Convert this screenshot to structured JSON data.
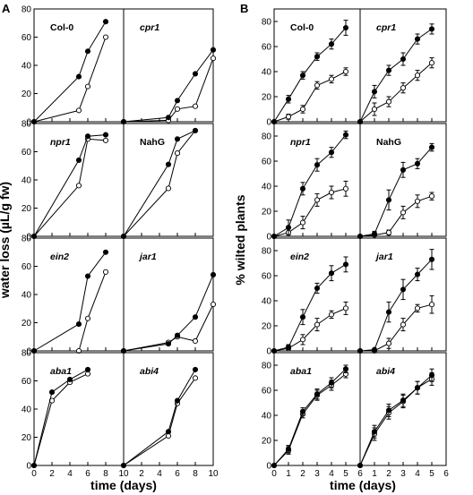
{
  "figure": {
    "panel_letters": [
      "A",
      "B"
    ],
    "panel_A": {
      "ylabel": "water loss (µL/g fw)",
      "xlabel": "time (days)",
      "x_ticks": [
        0,
        2,
        4,
        6,
        8,
        10
      ],
      "y_ticks": [
        0,
        20,
        40,
        60,
        80
      ],
      "xlim": [
        0,
        10
      ],
      "ylim": [
        0,
        80
      ]
    },
    "panel_B": {
      "ylabel": "% wilted plants",
      "xlabel": "time (days)",
      "x_ticks": [
        0,
        1,
        2,
        3,
        4,
        5,
        6
      ],
      "y_ticks": [
        0,
        20,
        40,
        60,
        80
      ],
      "xlim": [
        0,
        6
      ],
      "ylim": [
        0,
        90
      ]
    }
  },
  "chart_data": [
    {
      "type": "line",
      "panel": "A",
      "genotype": "Col-0",
      "italic": false,
      "series": [
        {
          "marker": "filled",
          "x": [
            0,
            5,
            6,
            8
          ],
          "y": [
            0,
            32,
            50,
            71
          ]
        },
        {
          "marker": "open",
          "x": [
            0,
            5,
            6,
            8
          ],
          "y": [
            0,
            8,
            25,
            60
          ]
        }
      ]
    },
    {
      "type": "line",
      "panel": "A",
      "genotype": "cpr1",
      "italic": true,
      "series": [
        {
          "marker": "filled",
          "x": [
            0,
            5,
            6,
            8,
            10
          ],
          "y": [
            0,
            3,
            15,
            34,
            51
          ]
        },
        {
          "marker": "open",
          "x": [
            0,
            5,
            6,
            8,
            10
          ],
          "y": [
            0,
            1,
            9,
            11,
            45
          ]
        }
      ]
    },
    {
      "type": "line",
      "panel": "A",
      "genotype": "npr1",
      "italic": true,
      "series": [
        {
          "marker": "filled",
          "x": [
            0,
            5,
            6,
            8
          ],
          "y": [
            0,
            54,
            71,
            72
          ]
        },
        {
          "marker": "open",
          "x": [
            0,
            5,
            6,
            8
          ],
          "y": [
            0,
            36,
            69,
            68
          ]
        }
      ]
    },
    {
      "type": "line",
      "panel": "A",
      "genotype": "NahG",
      "italic": false,
      "series": [
        {
          "marker": "filled",
          "x": [
            0,
            5,
            6,
            8
          ],
          "y": [
            0,
            51,
            69,
            75
          ]
        },
        {
          "marker": "open",
          "x": [
            0,
            5,
            6,
            8
          ],
          "y": [
            0,
            34,
            59,
            75
          ]
        }
      ]
    },
    {
      "type": "line",
      "panel": "A",
      "genotype": "ein2",
      "italic": true,
      "series": [
        {
          "marker": "filled",
          "x": [
            0,
            5,
            6,
            8
          ],
          "y": [
            0,
            19,
            53,
            70
          ]
        },
        {
          "marker": "open",
          "x": [
            0,
            5,
            6,
            8
          ],
          "y": [
            0,
            0,
            23,
            56
          ]
        }
      ]
    },
    {
      "type": "line",
      "panel": "A",
      "genotype": "jar1",
      "italic": true,
      "series": [
        {
          "marker": "filled",
          "x": [
            0,
            5,
            6,
            8,
            10
          ],
          "y": [
            0,
            5,
            11,
            24,
            54
          ]
        },
        {
          "marker": "open",
          "x": [
            0,
            5,
            6,
            8,
            10
          ],
          "y": [
            0,
            6,
            10,
            7,
            33
          ]
        }
      ]
    },
    {
      "type": "line",
      "panel": "A",
      "genotype": "aba1",
      "italic": true,
      "series": [
        {
          "marker": "filled",
          "x": [
            0,
            2,
            4,
            6
          ],
          "y": [
            0,
            52,
            61,
            68
          ]
        },
        {
          "marker": "open",
          "x": [
            0,
            2,
            4,
            6
          ],
          "y": [
            0,
            46,
            59,
            65
          ]
        }
      ]
    },
    {
      "type": "line",
      "panel": "A",
      "genotype": "abi4",
      "italic": true,
      "series": [
        {
          "marker": "filled",
          "x": [
            0,
            5,
            6,
            8
          ],
          "y": [
            0,
            24,
            46,
            68
          ]
        },
        {
          "marker": "open",
          "x": [
            0,
            5,
            6,
            8
          ],
          "y": [
            0,
            21,
            44,
            62
          ]
        }
      ]
    },
    {
      "type": "line",
      "panel": "B",
      "genotype": "Col-0",
      "italic": false,
      "series": [
        {
          "marker": "filled",
          "x": [
            0,
            1,
            2,
            3,
            4,
            5
          ],
          "y": [
            0,
            18,
            37,
            52,
            62,
            75
          ],
          "err": [
            0,
            3,
            3,
            3,
            4,
            6
          ]
        },
        {
          "marker": "open",
          "x": [
            0,
            1,
            2,
            3,
            4,
            5
          ],
          "y": [
            0,
            4,
            10,
            29,
            34,
            40
          ],
          "err": [
            0,
            2,
            3,
            3,
            3,
            3
          ]
        }
      ]
    },
    {
      "type": "line",
      "panel": "B",
      "genotype": "cpr1",
      "italic": true,
      "series": [
        {
          "marker": "filled",
          "x": [
            0,
            1,
            2,
            3,
            4,
            5
          ],
          "y": [
            0,
            24,
            41,
            50,
            66,
            74
          ],
          "err": [
            0,
            5,
            4,
            5,
            4,
            4
          ]
        },
        {
          "marker": "open",
          "x": [
            0,
            1,
            2,
            3,
            4,
            5
          ],
          "y": [
            0,
            10,
            16,
            27,
            37,
            47
          ],
          "err": [
            0,
            5,
            4,
            4,
            4,
            4
          ]
        }
      ]
    },
    {
      "type": "line",
      "panel": "B",
      "genotype": "npr1",
      "italic": true,
      "series": [
        {
          "marker": "filled",
          "x": [
            0,
            1,
            2,
            3,
            4,
            5
          ],
          "y": [
            0,
            7,
            38,
            57,
            67,
            81
          ],
          "err": [
            0,
            6,
            5,
            5,
            4,
            3
          ]
        },
        {
          "marker": "open",
          "x": [
            0,
            1,
            2,
            3,
            4,
            5
          ],
          "y": [
            0,
            3,
            11,
            29,
            35,
            38
          ],
          "err": [
            0,
            3,
            5,
            5,
            5,
            6
          ]
        }
      ]
    },
    {
      "type": "line",
      "panel": "B",
      "genotype": "NahG",
      "italic": false,
      "series": [
        {
          "marker": "filled",
          "x": [
            0,
            1,
            2,
            3,
            4,
            5
          ],
          "y": [
            0,
            2,
            29,
            53,
            58,
            71
          ],
          "err": [
            0,
            2,
            8,
            6,
            4,
            3
          ]
        },
        {
          "marker": "open",
          "x": [
            0,
            1,
            2,
            3,
            4,
            5
          ],
          "y": [
            0,
            1,
            3,
            19,
            28,
            32
          ],
          "err": [
            0,
            1,
            2,
            5,
            5,
            3
          ]
        }
      ]
    },
    {
      "type": "line",
      "panel": "B",
      "genotype": "ein2",
      "italic": true,
      "series": [
        {
          "marker": "filled",
          "x": [
            0,
            1,
            2,
            3,
            4,
            5
          ],
          "y": [
            0,
            3,
            27,
            50,
            62,
            69
          ],
          "err": [
            0,
            2,
            6,
            4,
            6,
            6
          ]
        },
        {
          "marker": "open",
          "x": [
            0,
            1,
            2,
            3,
            4,
            5
          ],
          "y": [
            0,
            2,
            9,
            21,
            29,
            34
          ],
          "err": [
            0,
            2,
            4,
            5,
            3,
            5
          ]
        }
      ]
    },
    {
      "type": "line",
      "panel": "B",
      "genotype": "jar1",
      "italic": true,
      "series": [
        {
          "marker": "filled",
          "x": [
            0,
            1,
            2,
            3,
            4,
            5
          ],
          "y": [
            0,
            1,
            31,
            49,
            61,
            73
          ],
          "err": [
            0,
            1,
            8,
            8,
            5,
            8
          ]
        },
        {
          "marker": "open",
          "x": [
            0,
            1,
            2,
            3,
            4,
            5
          ],
          "y": [
            0,
            0,
            6,
            21,
            34,
            37
          ],
          "err": [
            0,
            1,
            4,
            5,
            3,
            7
          ]
        }
      ]
    },
    {
      "type": "line",
      "panel": "B",
      "genotype": "aba1",
      "italic": true,
      "series": [
        {
          "marker": "filled",
          "x": [
            0,
            1,
            2,
            3,
            4,
            5
          ],
          "y": [
            0,
            13,
            43,
            57,
            66,
            77
          ],
          "err": [
            0,
            3,
            3,
            4,
            4,
            3
          ]
        },
        {
          "marker": "open",
          "x": [
            0,
            1,
            2,
            3,
            4,
            5
          ],
          "y": [
            0,
            12,
            41,
            56,
            64,
            73
          ],
          "err": [
            0,
            3,
            3,
            4,
            4,
            3
          ]
        }
      ]
    },
    {
      "type": "line",
      "panel": "B",
      "genotype": "abi4",
      "italic": true,
      "series": [
        {
          "marker": "filled",
          "x": [
            0,
            1,
            2,
            3,
            4,
            5
          ],
          "y": [
            0,
            27,
            44,
            52,
            62,
            72
          ],
          "err": [
            0,
            5,
            5,
            5,
            5,
            5
          ]
        },
        {
          "marker": "open",
          "x": [
            0,
            1,
            2,
            3,
            4,
            5
          ],
          "y": [
            0,
            25,
            42,
            51,
            62,
            69
          ],
          "err": [
            0,
            5,
            5,
            5,
            5,
            5
          ]
        }
      ]
    }
  ]
}
